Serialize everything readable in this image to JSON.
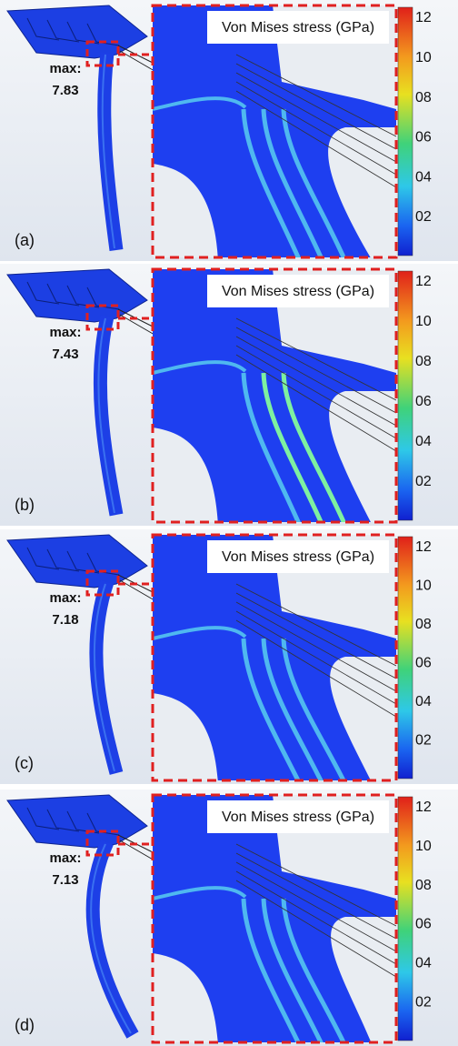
{
  "panels": [
    {
      "label": "(a)",
      "max_label": "max:",
      "max_value": "7.83",
      "legend_title": "Von Mises stress (GPa)",
      "colorbar_ticks": [
        "12",
        "10",
        "08",
        "06",
        "04",
        "02"
      ]
    },
    {
      "label": "(b)",
      "max_label": "max:",
      "max_value": "7.43",
      "legend_title": "Von Mises stress (GPa)",
      "colorbar_ticks": [
        "12",
        "10",
        "08",
        "06",
        "04",
        "02"
      ]
    },
    {
      "label": "(c)",
      "max_label": "max:",
      "max_value": "7.18",
      "legend_title": "Von Mises stress (GPa)",
      "colorbar_ticks": [
        "12",
        "10",
        "08",
        "06",
        "04",
        "02"
      ]
    },
    {
      "label": "(d)",
      "max_label": "max:",
      "max_value": "7.13",
      "legend_title": "Von Mises stress (GPa)",
      "colorbar_ticks": [
        "12",
        "10",
        "08",
        "06",
        "04",
        "02"
      ]
    }
  ]
}
